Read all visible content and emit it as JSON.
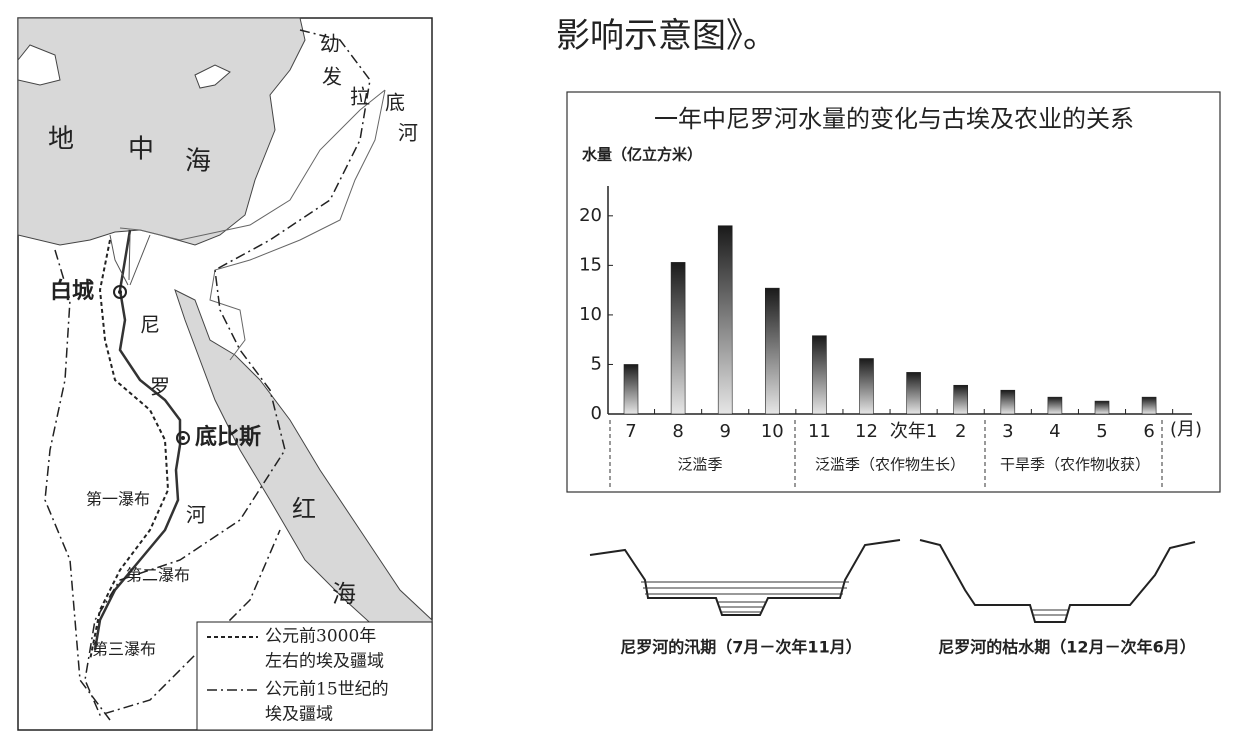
{
  "header": {
    "text": "影响示意图》。"
  },
  "map": {
    "mediterranean": [
      "地",
      "中",
      "海"
    ],
    "euphrates": [
      "幼",
      "发",
      "拉",
      "底",
      "河"
    ],
    "cities": [
      "白城",
      "底比斯"
    ],
    "nile": [
      "尼",
      "罗",
      "河"
    ],
    "red_sea": [
      "红",
      "海"
    ],
    "cataracts": [
      "第一瀑布",
      "第二瀑布",
      "第三瀑布"
    ],
    "legend": [
      {
        "lines": [
          "公元前3000年",
          "左右的埃及疆域"
        ]
      },
      {
        "lines": [
          "公元前15世纪的",
          "埃及疆域"
        ]
      }
    ]
  },
  "chart_data": {
    "type": "bar",
    "title": "一年中尼罗河水量的变化与古埃及农业的关系",
    "y_label": "水量（亿立方米）",
    "x_unit": "(月)",
    "categories": [
      "7",
      "8",
      "9",
      "10",
      "11",
      "12",
      "次年1",
      "2",
      "3",
      "4",
      "5",
      "6"
    ],
    "values": [
      5,
      15.3,
      19,
      12.7,
      7.9,
      5.6,
      4.2,
      2.9,
      2.4,
      1.7,
      1.3,
      1.7
    ],
    "ylim": [
      0,
      22
    ],
    "yticks": [
      0,
      5,
      10,
      15,
      20
    ],
    "grid": false,
    "seasons": [
      "泛滥季",
      "泛滥季（农作物生长）",
      "干旱季（农作物收获）"
    ]
  },
  "diagrams": {
    "captions": [
      "尼罗河的汛期（7月－次年11月）",
      "尼罗河的枯水期（12月－次年6月）"
    ]
  }
}
